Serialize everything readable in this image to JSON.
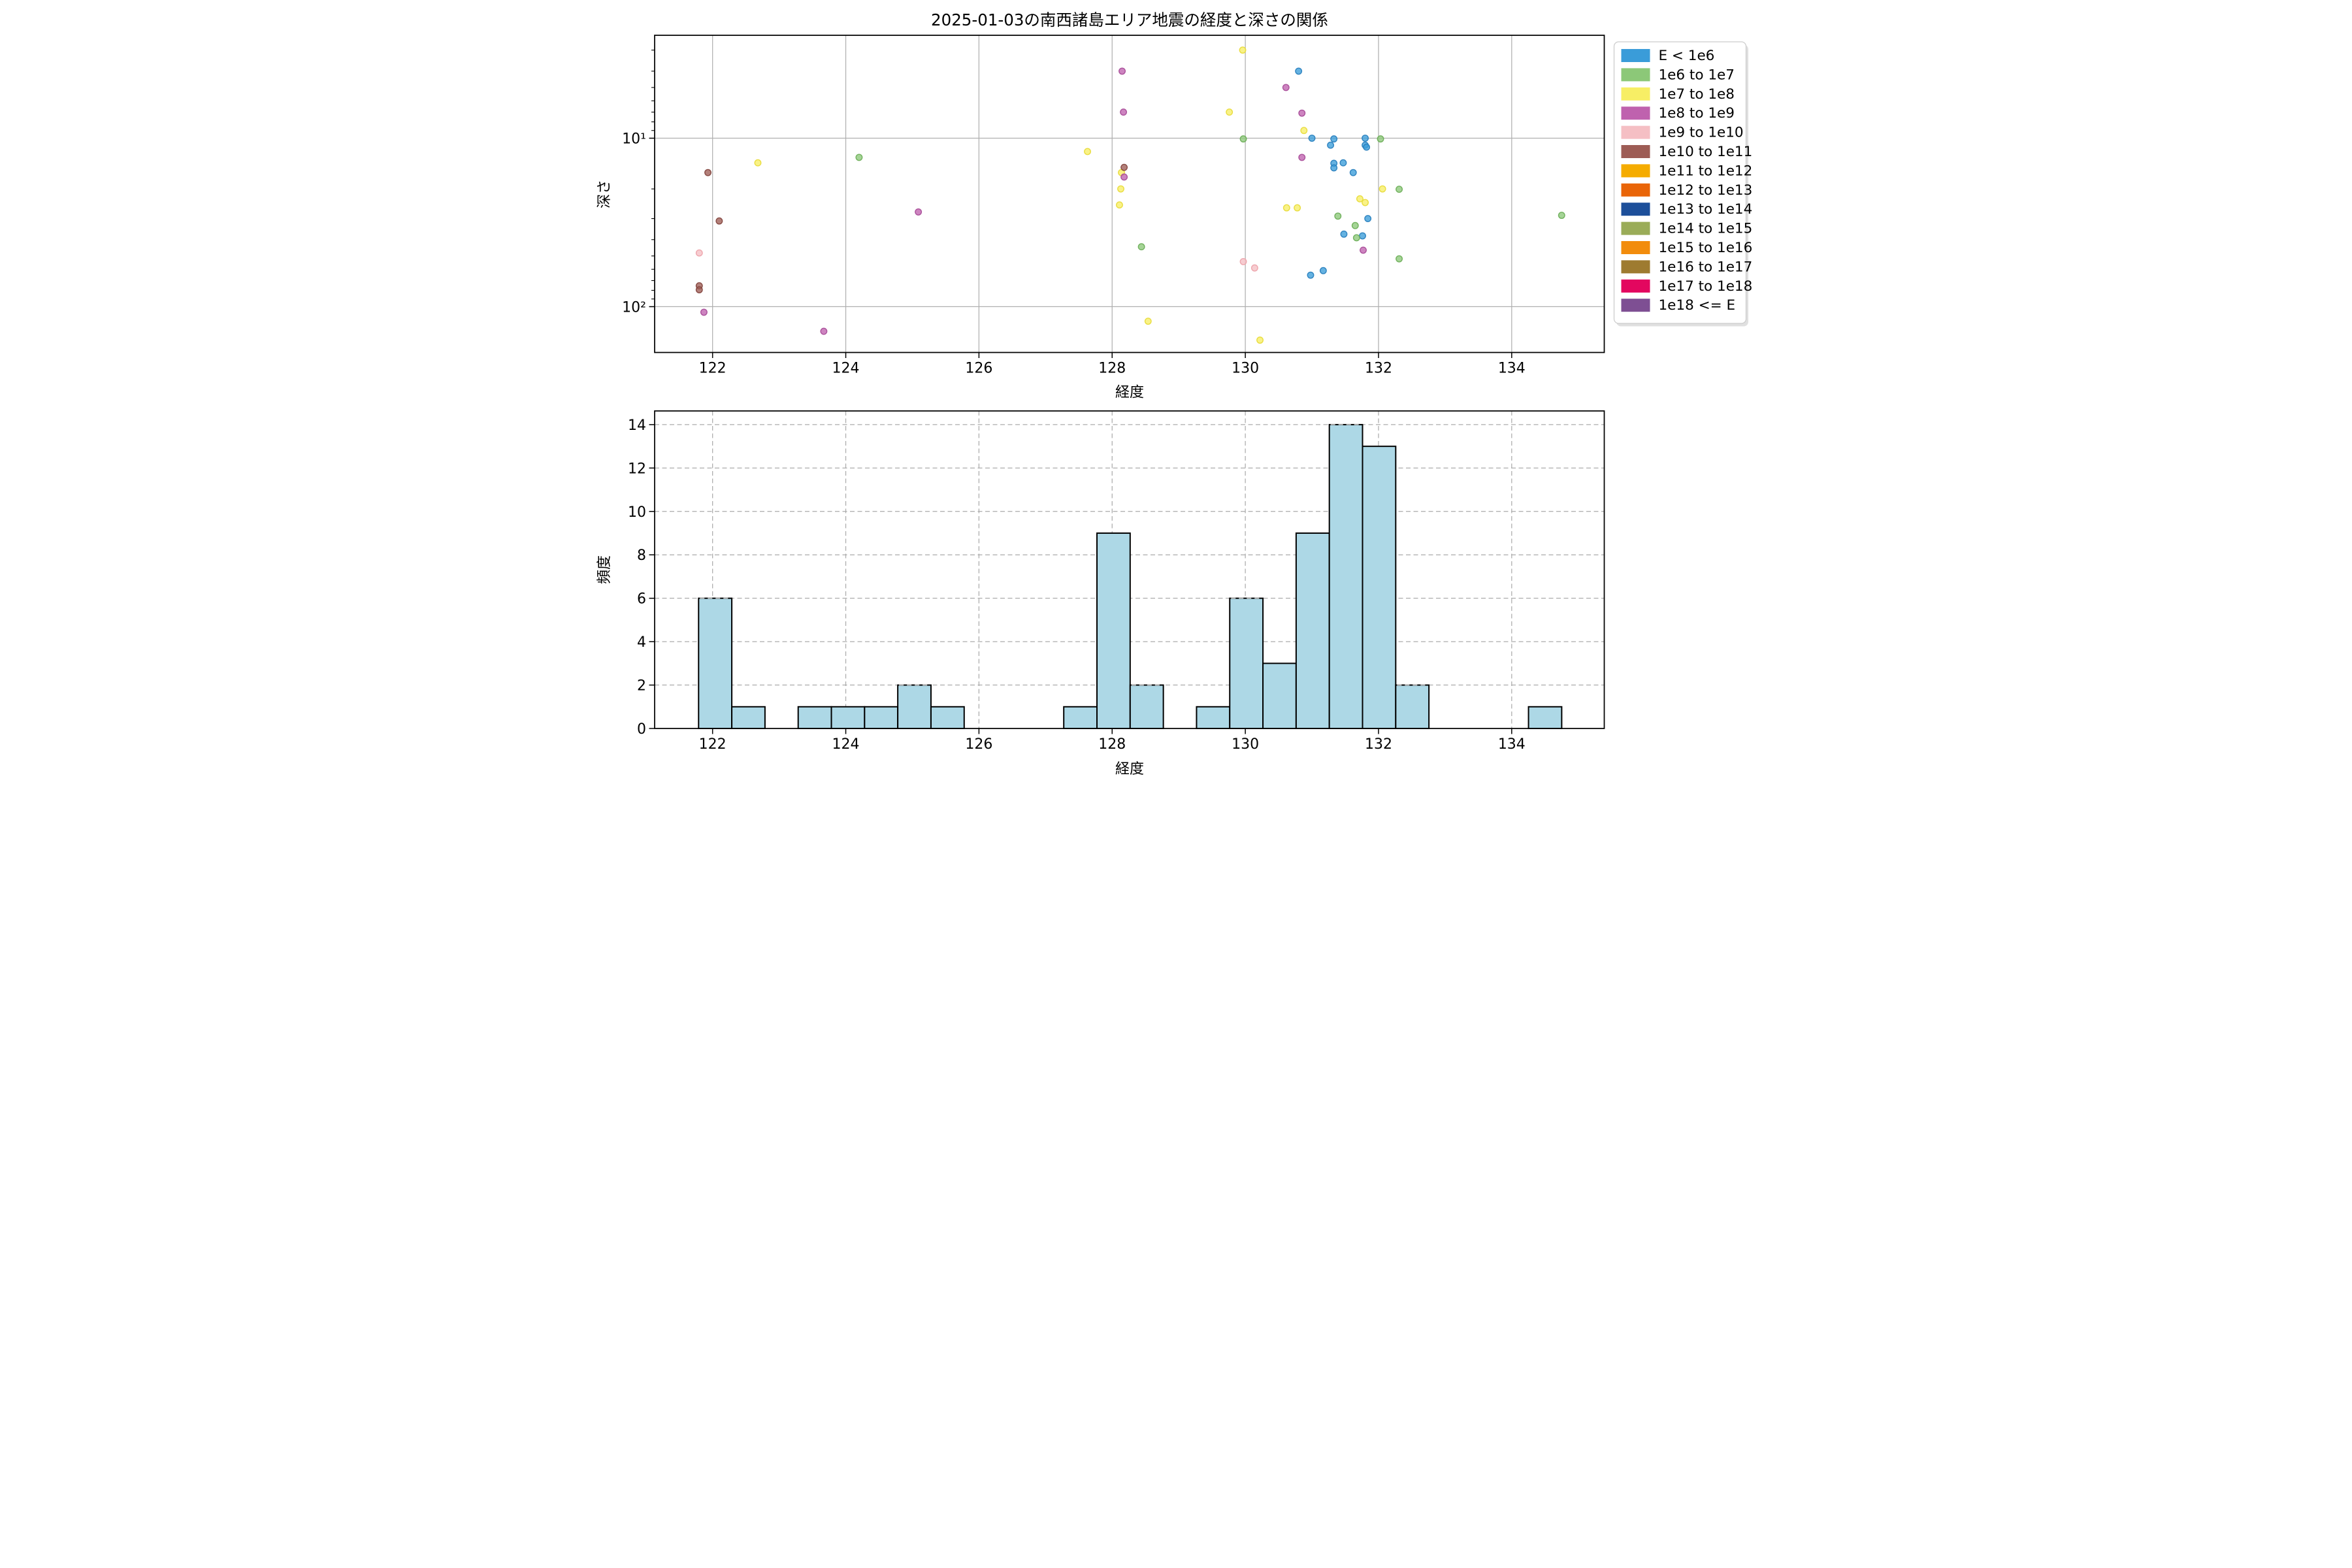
{
  "figure": {
    "background": "#ffffff"
  },
  "chart_data": [
    {
      "type": "scatter",
      "title": "2025-01-03の南西諸島エリア地震の経度と深さの関係",
      "xlabel": "経度",
      "ylabel": "深さ",
      "xlim": [
        121.13,
        135.39
      ],
      "ylim": [
        2.45,
        187.0
      ],
      "yscale": "log",
      "y_inverted": true,
      "grid": true,
      "grid_color": "#b0b0b0",
      "xticks": [
        122,
        124,
        126,
        128,
        130,
        132,
        134
      ],
      "yticks": [
        {
          "value": 10,
          "label": "10¹"
        },
        {
          "value": 100,
          "label": "10²"
        }
      ],
      "legend_position": "outside-right",
      "series": [
        {
          "label": "E < 1e6",
          "color": "#3A9CD9",
          "edge": "#2980BE",
          "points": [
            [
              130.8,
              4.0
            ],
            [
              130.98,
              65.0
            ],
            [
              131.0,
              10.0
            ],
            [
              131.17,
              61.1
            ],
            [
              131.28,
              11.0
            ],
            [
              131.33,
              10.1
            ],
            [
              131.33,
              14.1
            ],
            [
              131.33,
              15.0
            ],
            [
              131.47,
              14.0
            ],
            [
              131.48,
              37.1
            ],
            [
              131.62,
              16.0
            ],
            [
              131.76,
              38.0
            ],
            [
              131.8,
              10.0
            ],
            [
              131.8,
              11.0
            ],
            [
              131.82,
              11.3
            ],
            [
              131.84,
              30.0
            ]
          ]
        },
        {
          "label": "1e6 to 1e7",
          "color": "#8CC878",
          "edge": "#6DAE58",
          "points": [
            [
              124.2,
              13.0
            ],
            [
              128.44,
              44.1
            ],
            [
              129.97,
              10.1
            ],
            [
              131.39,
              29.0
            ],
            [
              131.65,
              33.0
            ],
            [
              131.67,
              39.0
            ],
            [
              132.03,
              10.1
            ],
            [
              132.31,
              20.1
            ],
            [
              132.31,
              52.0
            ],
            [
              134.75,
              28.7
            ]
          ]
        },
        {
          "label": "1e7 to 1e8",
          "color": "#F7EE65",
          "edge": "#E8DB3A",
          "points": [
            [
              122.68,
              14.0
            ],
            [
              127.63,
              12.0
            ],
            [
              128.11,
              24.9
            ],
            [
              128.13,
              20.0
            ],
            [
              128.14,
              16.0
            ],
            [
              128.54,
              122.0
            ],
            [
              129.76,
              7.0
            ],
            [
              129.96,
              3.0
            ],
            [
              130.22,
              158.0
            ],
            [
              130.62,
              25.9
            ],
            [
              130.78,
              25.9
            ],
            [
              130.88,
              9.0
            ],
            [
              131.72,
              22.9
            ],
            [
              131.8,
              24.1
            ],
            [
              132.06,
              20.0
            ]
          ]
        },
        {
          "label": "1e8 to 1e9",
          "color": "#BF62AE",
          "edge": "#A84C98",
          "points": [
            [
              121.87,
              107.9
            ],
            [
              123.67,
              140.0
            ],
            [
              125.09,
              27.4
            ],
            [
              128.15,
              4.0
            ],
            [
              128.17,
              7.0
            ],
            [
              128.18,
              17.0
            ],
            [
              130.61,
              5.0
            ],
            [
              130.85,
              7.1
            ],
            [
              130.85,
              13.0
            ],
            [
              131.77,
              46.2
            ]
          ]
        },
        {
          "label": "1e9 to 1e10",
          "color": "#F5BFC4",
          "edge": "#EDA3AB",
          "points": [
            [
              121.8,
              48.0
            ],
            [
              129.97,
              54.0
            ],
            [
              130.14,
              58.9
            ]
          ]
        },
        {
          "label": "1e10 to 1e11",
          "color": "#9D5C55",
          "edge": "#84463F",
          "points": [
            [
              121.8,
              75.2
            ],
            [
              121.8,
              79.4
            ],
            [
              121.93,
              16.0
            ],
            [
              122.1,
              31.0
            ],
            [
              128.18,
              14.9
            ]
          ]
        },
        {
          "label": "1e11 to 1e12",
          "color": "#F5AC00",
          "edge": "#D89700",
          "points": []
        },
        {
          "label": "1e12 to 1e13",
          "color": "#E96508",
          "edge": "#C85506",
          "points": []
        },
        {
          "label": "1e13 to 1e14",
          "color": "#1D4F9A",
          "edge": "#163E7A",
          "points": []
        },
        {
          "label": "1e14 to 1e15",
          "color": "#9AAC58",
          "edge": "#7F9046",
          "points": []
        },
        {
          "label": "1e15 to 1e16",
          "color": "#F28C0C",
          "edge": "#CF770A",
          "points": []
        },
        {
          "label": "1e16 to 1e17",
          "color": "#9E7B30",
          "edge": "#826426",
          "points": []
        },
        {
          "label": "1e17 to 1e18",
          "color": "#E3075F",
          "edge": "#BC0650",
          "points": []
        },
        {
          "label": "1e18 <= E",
          "color": "#7E4F93",
          "edge": "#663F77",
          "points": []
        }
      ]
    },
    {
      "type": "histogram",
      "xlabel": "経度",
      "ylabel": "頻度",
      "xlim": [
        121.13,
        135.39
      ],
      "ylim": [
        0,
        14.63
      ],
      "xticks": [
        122,
        124,
        126,
        128,
        130,
        132,
        134
      ],
      "yticks": [
        0,
        2,
        4,
        6,
        8,
        10,
        12,
        14
      ],
      "bin_start": 121.79,
      "bin_width": 0.4985,
      "counts": [
        6,
        1,
        0,
        1,
        1,
        1,
        2,
        1,
        0,
        0,
        0,
        1,
        9,
        2,
        0,
        1,
        6,
        3,
        9,
        14,
        13,
        2,
        0,
        0,
        0,
        1
      ],
      "bar_fill": "#ADD8E6",
      "bar_edge": "#000000",
      "grid_style": "dashed",
      "grid_color": "#ababab"
    }
  ]
}
